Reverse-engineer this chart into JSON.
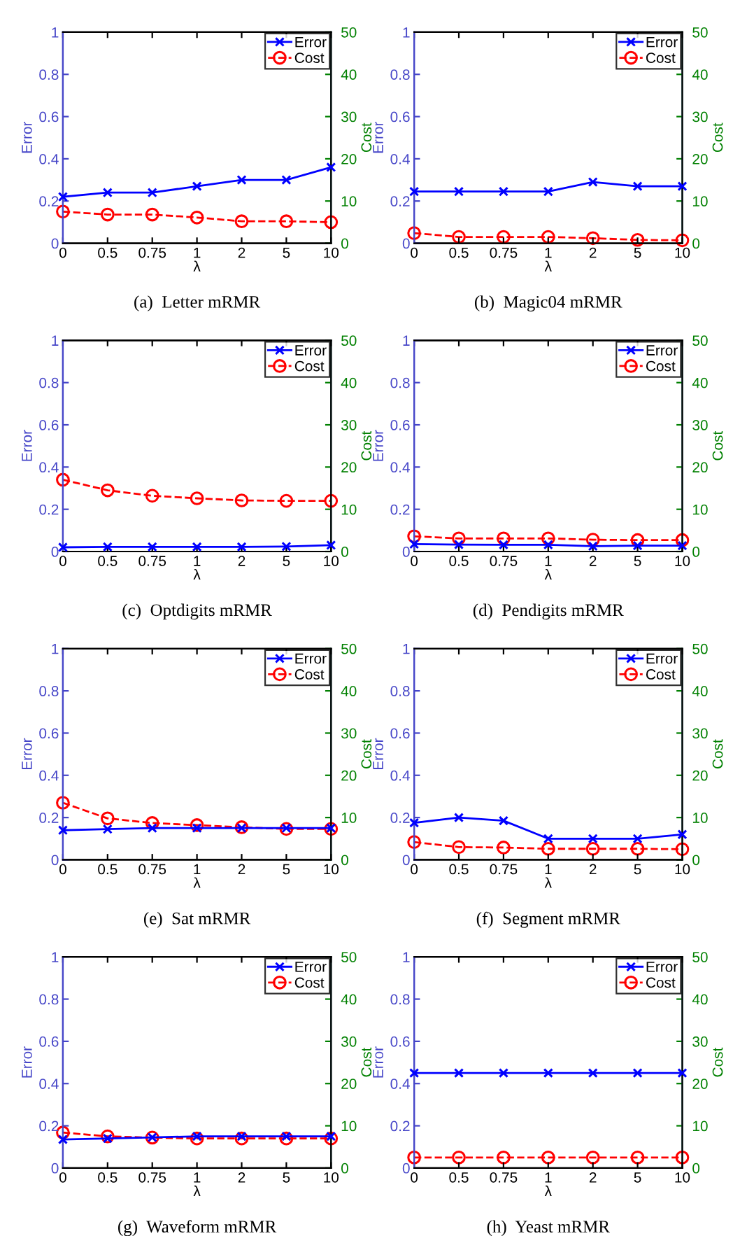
{
  "chart_data": [
    {
      "type": "line",
      "title": "(a)  Letter mRMR",
      "xlabel": "λ",
      "ylabel": "Error",
      "y2label": "Cost",
      "categories": [
        "0",
        "0.5",
        "0.75",
        "1",
        "2",
        "5",
        "10"
      ],
      "ylim": [
        0,
        1
      ],
      "yticks": [
        0,
        0.2,
        0.4,
        0.6,
        0.8,
        1
      ],
      "y2lim": [
        0,
        50
      ],
      "y2ticks": [
        0,
        10,
        20,
        30,
        40,
        50
      ],
      "legend": "top right",
      "grid": false,
      "series": [
        {
          "name": "Error",
          "color": "#0000ff",
          "marker": "cross",
          "line_style": "solid",
          "values": [
            0.22,
            0.24,
            0.24,
            0.27,
            0.3,
            0.3,
            0.36
          ]
        },
        {
          "name": "Cost",
          "color": "#ff0000",
          "marker": "circle",
          "line_style": "dashed",
          "axis": "y2",
          "values": [
            7.5,
            6.8,
            6.8,
            6.1,
            5.2,
            5.2,
            5.0
          ]
        }
      ]
    },
    {
      "type": "line",
      "title": "(b)  Magic04 mRMR",
      "xlabel": "λ",
      "ylabel": "Error",
      "y2label": "Cost",
      "categories": [
        "0",
        "0.5",
        "0.75",
        "1",
        "2",
        "5",
        "10"
      ],
      "ylim": [
        0,
        1
      ],
      "yticks": [
        0,
        0.2,
        0.4,
        0.6,
        0.8,
        1
      ],
      "y2lim": [
        0,
        50
      ],
      "y2ticks": [
        0,
        10,
        20,
        30,
        40,
        50
      ],
      "legend": "top right",
      "grid": false,
      "series": [
        {
          "name": "Error",
          "color": "#0000ff",
          "marker": "cross",
          "line_style": "solid",
          "values": [
            0.245,
            0.245,
            0.245,
            0.245,
            0.29,
            0.27,
            0.27
          ]
        },
        {
          "name": "Cost",
          "color": "#ff0000",
          "marker": "circle",
          "line_style": "dashed",
          "axis": "y2",
          "values": [
            2.4,
            1.5,
            1.5,
            1.5,
            1.2,
            0.8,
            0.7
          ]
        }
      ]
    },
    {
      "type": "line",
      "title": "(c)  Optdigits mRMR",
      "xlabel": "λ",
      "ylabel": "Error",
      "y2label": "Cost",
      "categories": [
        "0",
        "0.5",
        "0.75",
        "1",
        "2",
        "5",
        "10"
      ],
      "ylim": [
        0,
        1
      ],
      "yticks": [
        0,
        0.2,
        0.4,
        0.6,
        0.8,
        1
      ],
      "y2lim": [
        0,
        50
      ],
      "y2ticks": [
        0,
        10,
        20,
        30,
        40,
        50
      ],
      "legend": "top right",
      "grid": false,
      "series": [
        {
          "name": "Error",
          "color": "#0000ff",
          "marker": "cross",
          "line_style": "solid",
          "values": [
            0.02,
            0.022,
            0.022,
            0.022,
            0.022,
            0.024,
            0.03
          ]
        },
        {
          "name": "Cost",
          "color": "#ff0000",
          "marker": "circle",
          "line_style": "dashed",
          "axis": "y2",
          "values": [
            17.0,
            14.5,
            13.2,
            12.6,
            12.1,
            12.0,
            12.0
          ]
        }
      ]
    },
    {
      "type": "line",
      "title": "(d)  Pendigits mRMR",
      "xlabel": "λ",
      "ylabel": "Error",
      "y2label": "Cost",
      "categories": [
        "0",
        "0.5",
        "0.75",
        "1",
        "2",
        "5",
        "10"
      ],
      "ylim": [
        0,
        1
      ],
      "yticks": [
        0,
        0.2,
        0.4,
        0.6,
        0.8,
        1
      ],
      "y2lim": [
        0,
        50
      ],
      "y2ticks": [
        0,
        10,
        20,
        30,
        40,
        50
      ],
      "legend": "top right",
      "grid": false,
      "series": [
        {
          "name": "Error",
          "color": "#0000ff",
          "marker": "cross",
          "line_style": "solid",
          "values": [
            0.035,
            0.033,
            0.032,
            0.032,
            0.025,
            0.028,
            0.028
          ]
        },
        {
          "name": "Cost",
          "color": "#ff0000",
          "marker": "circle",
          "line_style": "dashed",
          "axis": "y2",
          "values": [
            3.6,
            3.1,
            3.1,
            3.1,
            2.8,
            2.7,
            2.7
          ]
        }
      ]
    },
    {
      "type": "line",
      "title": "(e)  Sat mRMR",
      "xlabel": "λ",
      "ylabel": "Error",
      "y2label": "Cost",
      "categories": [
        "0",
        "0.5",
        "0.75",
        "1",
        "2",
        "5",
        "10"
      ],
      "ylim": [
        0,
        1
      ],
      "yticks": [
        0,
        0.2,
        0.4,
        0.6,
        0.8,
        1
      ],
      "y2lim": [
        0,
        50
      ],
      "y2ticks": [
        0,
        10,
        20,
        30,
        40,
        50
      ],
      "legend": "top right",
      "grid": false,
      "series": [
        {
          "name": "Error",
          "color": "#0000ff",
          "marker": "cross",
          "line_style": "solid",
          "values": [
            0.14,
            0.145,
            0.15,
            0.15,
            0.15,
            0.15,
            0.15
          ]
        },
        {
          "name": "Cost",
          "color": "#ff0000",
          "marker": "circle",
          "line_style": "dashed",
          "axis": "y2",
          "values": [
            13.5,
            9.8,
            8.7,
            8.2,
            7.7,
            7.3,
            7.3
          ]
        }
      ]
    },
    {
      "type": "line",
      "title": "(f)  Segment mRMR",
      "xlabel": "λ",
      "ylabel": "Error",
      "y2label": "Cost",
      "categories": [
        "0",
        "0.5",
        "0.75",
        "1",
        "2",
        "5",
        "10"
      ],
      "ylim": [
        0,
        1
      ],
      "yticks": [
        0,
        0.2,
        0.4,
        0.6,
        0.8,
        1
      ],
      "y2lim": [
        0,
        50
      ],
      "y2ticks": [
        0,
        10,
        20,
        30,
        40,
        50
      ],
      "legend": "top right",
      "grid": false,
      "series": [
        {
          "name": "Error",
          "color": "#0000ff",
          "marker": "cross",
          "line_style": "solid",
          "values": [
            0.175,
            0.2,
            0.185,
            0.1,
            0.1,
            0.1,
            0.12
          ]
        },
        {
          "name": "Cost",
          "color": "#ff0000",
          "marker": "circle",
          "line_style": "dashed",
          "axis": "y2",
          "values": [
            4.2,
            3.0,
            2.9,
            2.6,
            2.6,
            2.6,
            2.5
          ]
        }
      ]
    },
    {
      "type": "line",
      "title": "(g)  Waveform mRMR",
      "xlabel": "λ",
      "ylabel": "Error",
      "y2label": "Cost",
      "categories": [
        "0",
        "0.5",
        "0.75",
        "1",
        "2",
        "5",
        "10"
      ],
      "ylim": [
        0,
        1
      ],
      "yticks": [
        0,
        0.2,
        0.4,
        0.6,
        0.8,
        1
      ],
      "y2lim": [
        0,
        50
      ],
      "y2ticks": [
        0,
        10,
        20,
        30,
        40,
        50
      ],
      "legend": "top right",
      "grid": false,
      "series": [
        {
          "name": "Error",
          "color": "#0000ff",
          "marker": "cross",
          "line_style": "solid",
          "values": [
            0.135,
            0.14,
            0.145,
            0.15,
            0.15,
            0.15,
            0.15
          ]
        },
        {
          "name": "Cost",
          "color": "#ff0000",
          "marker": "circle",
          "line_style": "dashed",
          "axis": "y2",
          "values": [
            8.4,
            7.5,
            7.2,
            7.0,
            7.0,
            7.0,
            7.0
          ]
        }
      ]
    },
    {
      "type": "line",
      "title": "(h)  Yeast mRMR",
      "xlabel": "λ",
      "ylabel": "Error",
      "y2label": "Cost",
      "categories": [
        "0",
        "0.5",
        "0.75",
        "1",
        "2",
        "5",
        "10"
      ],
      "ylim": [
        0,
        1
      ],
      "yticks": [
        0,
        0.2,
        0.4,
        0.6,
        0.8,
        1
      ],
      "y2lim": [
        0,
        50
      ],
      "y2ticks": [
        0,
        10,
        20,
        30,
        40,
        50
      ],
      "legend": "top right",
      "grid": false,
      "series": [
        {
          "name": "Error",
          "color": "#0000ff",
          "marker": "cross",
          "line_style": "solid",
          "values": [
            0.45,
            0.45,
            0.45,
            0.45,
            0.45,
            0.45,
            0.45
          ]
        },
        {
          "name": "Cost",
          "color": "#ff0000",
          "marker": "circle",
          "line_style": "dashed",
          "axis": "y2",
          "values": [
            2.5,
            2.5,
            2.5,
            2.5,
            2.5,
            2.5,
            2.5
          ]
        }
      ]
    }
  ]
}
